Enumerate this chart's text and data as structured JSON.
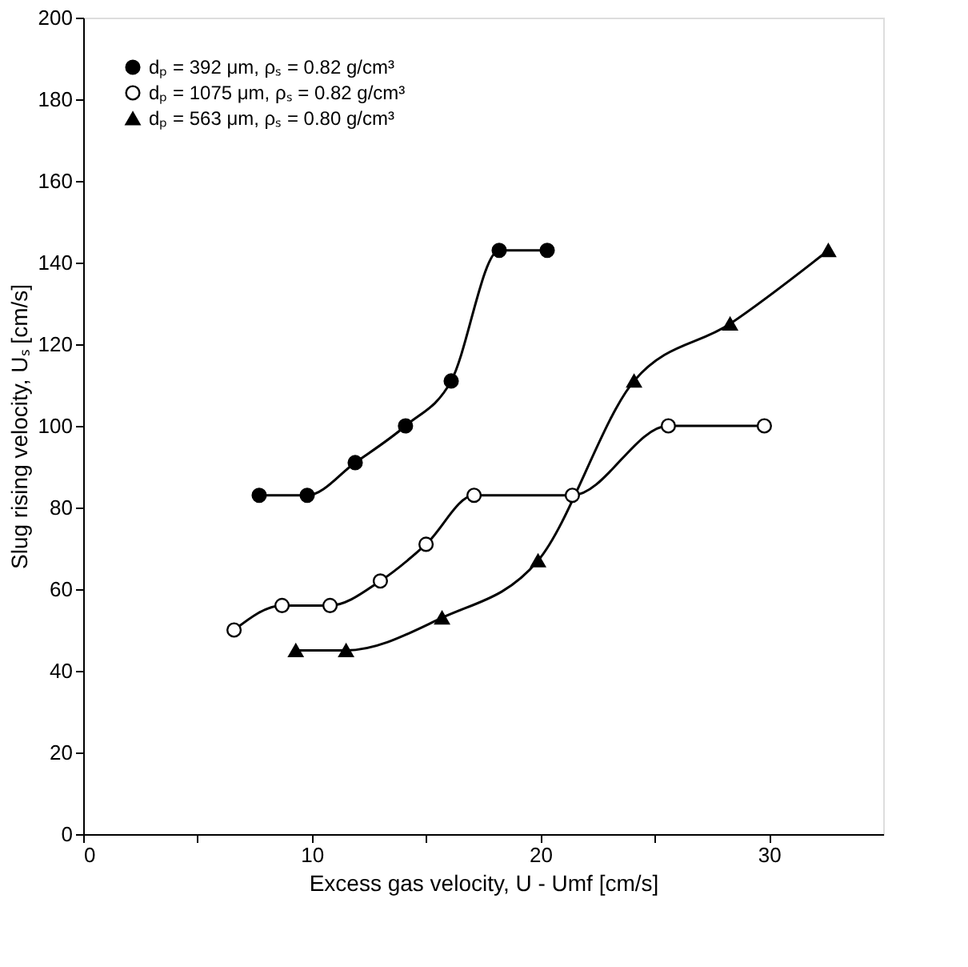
{
  "chart_data": {
    "type": "line",
    "xlabel": "Excess gas velocity, U - Umf [cm/s]",
    "ylabel": "Slug rising velocity, Uₛ [cm/s]",
    "series": [
      {
        "name": "dₚ = 392 μm, ρₛ = 0.82 g/cm³",
        "color": "#000000",
        "marker": "circle",
        "x": [
          7.7,
          9.8,
          11.9,
          14.1,
          16.1,
          18.2,
          20.3
        ],
        "values": [
          83,
          83,
          91,
          100,
          111,
          143,
          143
        ]
      },
      {
        "name": "dₚ = 1075 μm, ρₛ = 0.82 g/cm³",
        "color": "#000000",
        "marker": "circle",
        "x": [
          6.6,
          8.7,
          10.8,
          13.0,
          15.0,
          17.1,
          21.4,
          25.6,
          29.8
        ],
        "values": [
          50,
          56,
          56,
          62,
          71,
          83,
          83,
          100,
          100
        ]
      },
      {
        "name": "dₚ = 563 μm, ρₛ = 0.80 g/cm³",
        "color": "#000000",
        "marker": "triangle",
        "x": [
          9.3,
          11.5,
          15.7,
          19.9,
          24.1,
          28.3,
          32.6
        ],
        "values": [
          45,
          45,
          53,
          67,
          111,
          125,
          143
        ]
      }
    ],
    "xlim": [
      0,
      35
    ],
    "xticks": [
      0,
      {
        "value": 5,
        "label": null
      },
      10,
      {
        "value": 15,
        "label": null
      },
      20,
      {
        "value": 25,
        "label": null
      },
      30
    ],
    "ylim": [
      0,
      200
    ],
    "yticks": [
      0,
      20,
      40,
      60,
      80,
      100,
      120,
      140,
      160,
      180,
      200
    ],
    "grid": false,
    "legend": "top left",
    "line_style": "solid"
  }
}
